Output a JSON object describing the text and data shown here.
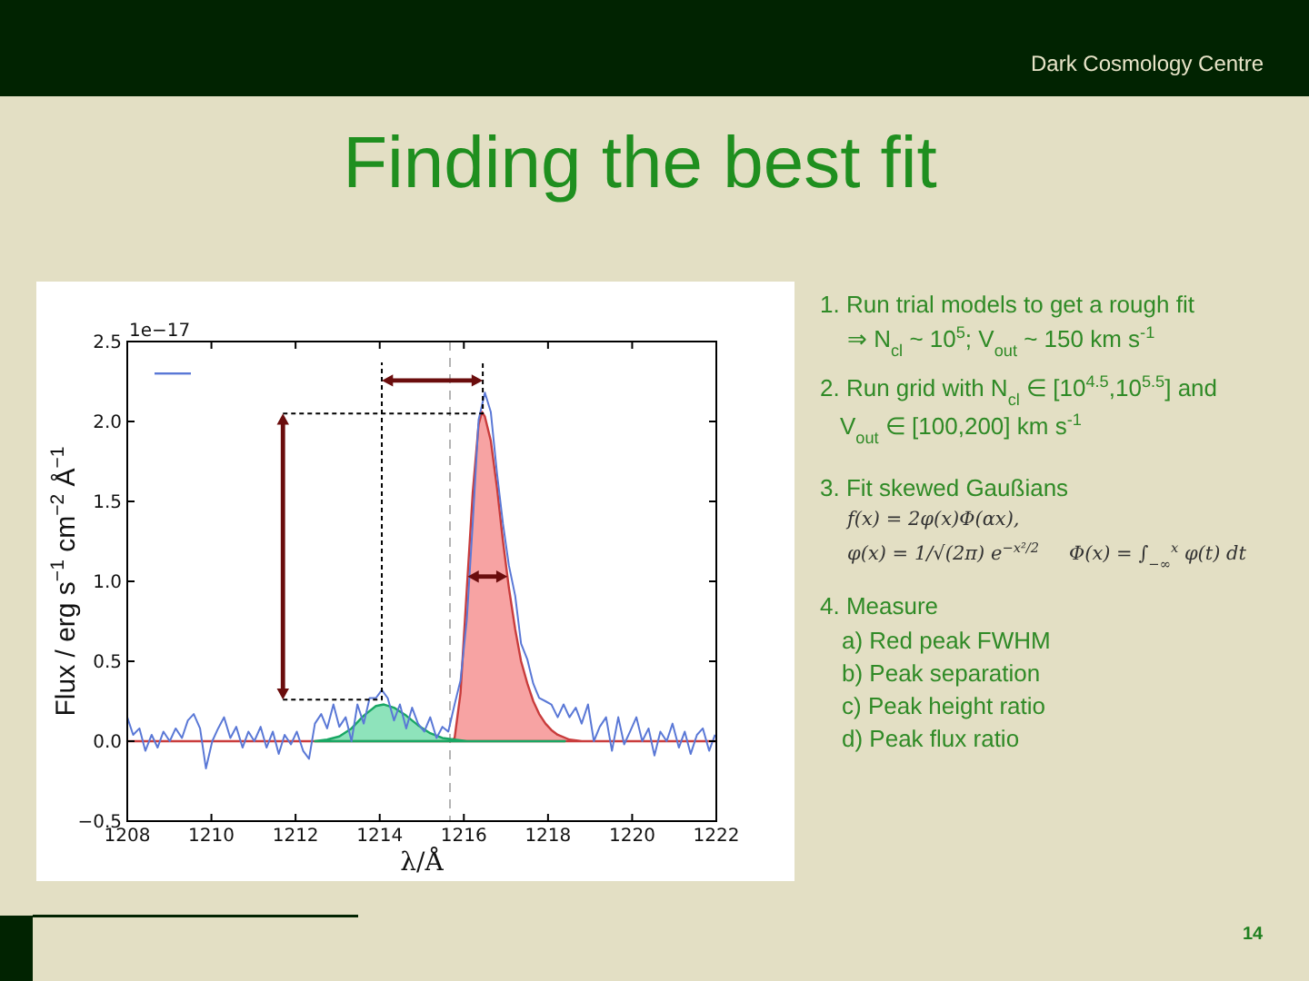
{
  "chart_data": {
    "type": "line",
    "title": "Finding the best fit",
    "xlabel": "λ/Å",
    "ylabel": "Flux / erg s$^{−1}$ cm$^{−2}$ Å$^{−1}$",
    "annotations": [
      "1e−17",
      "Dark Cosmology Centre",
      "1. Run trial models to get a rough fit",
      "⇒ N$_{cl}$ ~ 10$^{5}$; V$_{out}$ ~ 150 km s$^{-1}$",
      "2. Run grid with N$_{cl}$ ∈ [10$^{4.5}$,10$^{5.5}$] and",
      "V$_{out}$ ∈ [100,200] km s$^{-1}$",
      "3. Fit skewed Gaußians",
      "f(x) = 2φ(x)Φ(αx),",
      "φ(x) = 1/√(2π) e$^{−x²/2}$",
      "Φ(x) = ∫$_{−∞}$$^{x}$ φ(t) dt",
      "4. Measure",
      "a) Red peak FWHM",
      "b) Peak separation",
      "c) Peak height ratio",
      "d) Peak flux ratio",
      "14"
    ],
    "xlim": [
      1208,
      1222
    ],
    "xticks": [
      1208,
      1210,
      1212,
      1214,
      1216,
      1218,
      1220,
      1222
    ],
    "ylim": [
      -0.5,
      2.5
    ],
    "yticks": [
      {
        "value": -0.5,
        "label": "−0.5"
      },
      {
        "value": 0,
        "label": "0.0"
      },
      {
        "value": 0.5,
        "label": "0.5"
      },
      {
        "value": 1,
        "label": "1.0"
      },
      {
        "value": 1.5,
        "label": "1.5"
      },
      {
        "value": 2,
        "label": "2.0"
      },
      {
        "value": 2.5,
        "label": "2.5"
      }
    ],
    "ref_lines": [
      {
        "axis": "x",
        "value": 1215.67,
        "color": "#b4b4b4",
        "line_style": "dashed"
      }
    ],
    "series": [
      {
        "type": "area",
        "color": "#f04848",
        "x": [
          1208,
          1215.7,
          1215.78,
          1215.92,
          1216.07,
          1216.21,
          1216.35,
          1216.43,
          1216.5,
          1216.64,
          1216.79,
          1216.93,
          1217.07,
          1217.22,
          1217.36,
          1217.51,
          1217.65,
          1217.79,
          1217.94,
          1218.08,
          1218.23,
          1218.51,
          1218.8,
          1222
        ],
        "values": [
          0,
          0,
          0.02,
          0.3,
          0.95,
          1.55,
          1.98,
          2.06,
          2.03,
          1.88,
          1.58,
          1.25,
          0.96,
          0.7,
          0.5,
          0.36,
          0.25,
          0.17,
          0.11,
          0.07,
          0.04,
          0.01,
          0,
          0
        ]
      },
      {
        "type": "area",
        "color": "#1ec878",
        "x": [
          1212.46,
          1212.75,
          1213.04,
          1213.33,
          1213.62,
          1213.91,
          1214.1,
          1214.34,
          1214.63,
          1214.91,
          1215.2,
          1215.49,
          1215.78,
          1216.07,
          1218.4
        ],
        "values": [
          0,
          0.01,
          0.03,
          0.08,
          0.16,
          0.22,
          0.23,
          0.21,
          0.16,
          0.1,
          0.05,
          0.02,
          0.01,
          0,
          0
        ]
      },
      {
        "color": "#5a78d6",
        "x": [
          1208.0,
          1208.14,
          1208.29,
          1208.43,
          1208.58,
          1208.72,
          1208.86,
          1209.01,
          1209.15,
          1209.3,
          1209.44,
          1209.58,
          1209.73,
          1209.87,
          1210.02,
          1210.16,
          1210.3,
          1210.45,
          1210.59,
          1210.74,
          1210.88,
          1211.02,
          1211.17,
          1211.31,
          1211.46,
          1211.6,
          1211.74,
          1211.89,
          1212.03,
          1212.18,
          1212.32,
          1212.46,
          1212.61,
          1212.75,
          1212.9,
          1213.04,
          1213.19,
          1213.33,
          1213.47,
          1213.62,
          1213.76,
          1213.91,
          1214.05,
          1214.19,
          1214.34,
          1214.48,
          1214.63,
          1214.77,
          1214.91,
          1215.06,
          1215.2,
          1215.35,
          1215.49,
          1215.63,
          1215.78,
          1215.92,
          1216.07,
          1216.21,
          1216.35,
          1216.5,
          1216.64,
          1216.79,
          1216.93,
          1217.07,
          1217.22,
          1217.36,
          1217.51,
          1217.65,
          1217.79,
          1217.94,
          1218.08,
          1218.23,
          1218.37,
          1218.51,
          1218.66,
          1218.8,
          1218.95,
          1219.09,
          1219.23,
          1219.38,
          1219.52,
          1219.67,
          1219.81,
          1219.95,
          1220.1,
          1220.24,
          1220.39,
          1220.53,
          1220.67,
          1220.82,
          1220.96,
          1221.11,
          1221.25,
          1221.39,
          1221.54,
          1221.68,
          1221.83,
          1221.97
        ],
        "values": [
          0.15,
          0.04,
          0.08,
          -0.06,
          0.04,
          -0.04,
          0.06,
          0.0,
          0.08,
          0.02,
          0.13,
          0.17,
          0.08,
          -0.17,
          0.0,
          0.08,
          0.15,
          0.02,
          0.09,
          -0.04,
          0.06,
          0.0,
          0.09,
          -0.04,
          0.06,
          -0.08,
          0.04,
          -0.02,
          0.06,
          -0.06,
          -0.11,
          0.11,
          0.17,
          0.08,
          0.23,
          0.09,
          0.15,
          0.0,
          0.23,
          0.11,
          0.27,
          0.27,
          0.32,
          0.27,
          0.13,
          0.23,
          0.08,
          0.21,
          0.11,
          0.06,
          0.15,
          0.02,
          0.09,
          0.06,
          0.23,
          0.38,
          0.76,
          1.36,
          2.01,
          2.18,
          2.06,
          1.67,
          1.36,
          1.1,
          0.91,
          0.61,
          0.51,
          0.36,
          0.27,
          0.25,
          0.23,
          0.15,
          0.23,
          0.15,
          0.21,
          0.11,
          0.23,
          0.0,
          0.09,
          0.15,
          -0.06,
          0.15,
          -0.02,
          0.06,
          0.15,
          0.0,
          0.08,
          -0.09,
          0.06,
          0.0,
          0.11,
          -0.04,
          0.06,
          -0.08,
          0.04,
          0.08,
          -0.06,
          0.04
        ]
      },
      {
        "type": "line",
        "color": "#000000",
        "line_style": "dotted",
        "x": [
          1211.7,
          1214.05,
          1214.05
        ],
        "values": [
          0.26,
          0.26,
          2.37
        ]
      },
      {
        "type": "line",
        "color": "#000000",
        "line_style": "dotted",
        "x": [
          1211.7,
          1216.45,
          1216.45
        ],
        "values": [
          2.05,
          2.05,
          2.37
        ]
      }
    ]
  }
}
